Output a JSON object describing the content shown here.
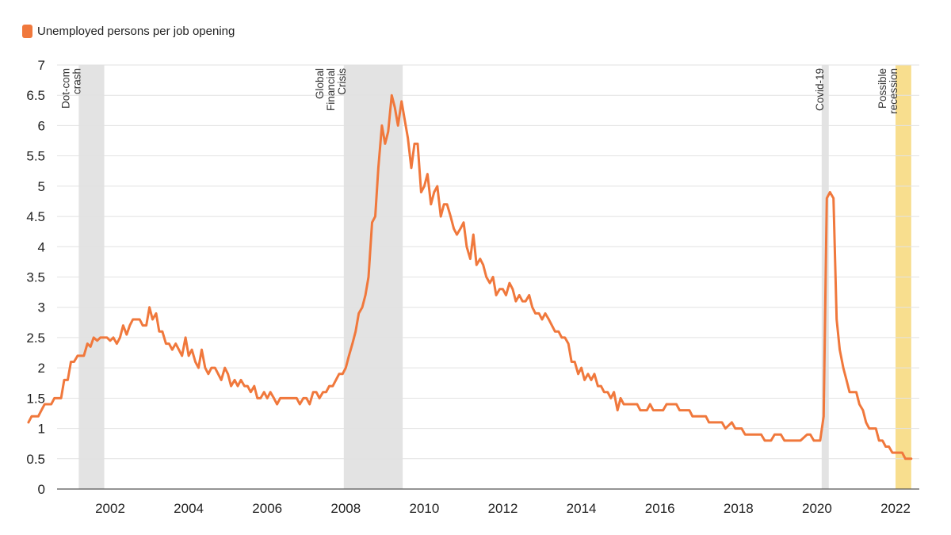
{
  "legend": {
    "label": "Unemployed persons per job opening",
    "color": "#F0783C"
  },
  "colors": {
    "line": "#F0783C",
    "recession_band": "#E3E3E3",
    "forecast_band": "#F8DE8E",
    "grid": "#E2E2E2",
    "axis": "#555555"
  },
  "chart_data": {
    "type": "line",
    "title": "",
    "xlabel": "",
    "ylabel": "",
    "xlim": [
      2000.9,
      2022.4
    ],
    "ylim": [
      0,
      7
    ],
    "grid": true,
    "legend_position": "top-left",
    "x_ticks": [
      2002,
      2004,
      2006,
      2008,
      2010,
      2012,
      2014,
      2016,
      2018,
      2020,
      2022
    ],
    "x_tick_labels": [
      "2002",
      "2004",
      "2006",
      "2008",
      "2010",
      "2012",
      "2014",
      "2016",
      "2018",
      "2020",
      "2022"
    ],
    "y_ticks": [
      0,
      0.5,
      1,
      1.5,
      2,
      2.5,
      3,
      3.5,
      4,
      4.5,
      5,
      5.5,
      6,
      6.5,
      7
    ],
    "y_tick_labels": [
      "0",
      "0.5",
      "1",
      "1.5",
      "2",
      "2.5",
      "3",
      "3.5",
      "4",
      "4.5",
      "5",
      "5.5",
      "6",
      "6.5",
      "7"
    ],
    "bands": [
      {
        "label_lines": [
          "Dot-com",
          "crash"
        ],
        "start": 2001.2,
        "end": 2001.85,
        "kind": "recession"
      },
      {
        "label_lines": [
          "Global",
          "Financial",
          "Crisis"
        ],
        "start": 2007.95,
        "end": 2009.45,
        "kind": "recession"
      },
      {
        "label_lines": [
          "Covid-19"
        ],
        "start": 2020.12,
        "end": 2020.3,
        "kind": "recession"
      },
      {
        "label_lines": [
          "Possible",
          "recession"
        ],
        "start": 2022.0,
        "end": 2022.4,
        "kind": "forecast"
      }
    ],
    "series": [
      {
        "color": "#F0783C",
        "points": [
          [
            2000.92,
            1.1
          ],
          [
            2001.0,
            1.2
          ],
          [
            2001.17,
            1.2
          ],
          [
            2001.25,
            1.3
          ],
          [
            2001.33,
            1.4
          ],
          [
            2001.5,
            1.4
          ],
          [
            2001.58,
            1.5
          ],
          [
            2001.75,
            1.5
          ],
          [
            2001.83,
            1.8
          ],
          [
            2001.92,
            1.8
          ],
          [
            2002.0,
            2.1
          ],
          [
            2002.08,
            2.1
          ],
          [
            2002.17,
            2.2
          ],
          [
            2002.33,
            2.2
          ],
          [
            2002.42,
            2.4
          ],
          [
            2002.5,
            2.35
          ],
          [
            2002.58,
            2.5
          ],
          [
            2002.67,
            2.45
          ],
          [
            2002.75,
            2.5
          ],
          [
            2002.92,
            2.5
          ],
          [
            2003.0,
            2.45
          ],
          [
            2003.08,
            2.5
          ],
          [
            2003.17,
            2.4
          ],
          [
            2003.25,
            2.5
          ],
          [
            2003.33,
            2.7
          ],
          [
            2003.42,
            2.55
          ],
          [
            2003.5,
            2.7
          ],
          [
            2003.58,
            2.8
          ],
          [
            2003.75,
            2.8
          ],
          [
            2003.83,
            2.7
          ],
          [
            2003.92,
            2.7
          ],
          [
            2004.0,
            3.0
          ],
          [
            2004.08,
            2.8
          ],
          [
            2004.17,
            2.9
          ],
          [
            2004.25,
            2.6
          ],
          [
            2004.33,
            2.6
          ],
          [
            2004.42,
            2.4
          ],
          [
            2004.5,
            2.4
          ],
          [
            2004.58,
            2.3
          ],
          [
            2004.67,
            2.4
          ],
          [
            2004.75,
            2.3
          ],
          [
            2004.83,
            2.2
          ],
          [
            2004.92,
            2.5
          ],
          [
            2005.0,
            2.2
          ],
          [
            2005.08,
            2.3
          ],
          [
            2005.17,
            2.1
          ],
          [
            2005.25,
            2.0
          ],
          [
            2005.33,
            2.3
          ],
          [
            2005.42,
            2.0
          ],
          [
            2005.5,
            1.9
          ],
          [
            2005.58,
            2.0
          ],
          [
            2005.67,
            2.0
          ],
          [
            2005.75,
            1.9
          ],
          [
            2005.83,
            1.8
          ],
          [
            2005.92,
            2.0
          ],
          [
            2006.0,
            1.9
          ],
          [
            2006.08,
            1.7
          ],
          [
            2006.17,
            1.8
          ],
          [
            2006.25,
            1.7
          ],
          [
            2006.33,
            1.8
          ],
          [
            2006.42,
            1.7
          ],
          [
            2006.5,
            1.7
          ],
          [
            2006.58,
            1.6
          ],
          [
            2006.67,
            1.7
          ],
          [
            2006.75,
            1.5
          ],
          [
            2006.83,
            1.5
          ],
          [
            2006.92,
            1.6
          ],
          [
            2007.0,
            1.5
          ],
          [
            2007.08,
            1.6
          ],
          [
            2007.17,
            1.5
          ],
          [
            2007.25,
            1.4
          ],
          [
            2007.33,
            1.5
          ],
          [
            2007.75,
            1.5
          ],
          [
            2007.83,
            1.4
          ],
          [
            2007.92,
            1.5
          ],
          [
            2008.0,
            1.5
          ],
          [
            2008.08,
            1.4
          ],
          [
            2008.17,
            1.6
          ],
          [
            2008.25,
            1.6
          ],
          [
            2008.33,
            1.5
          ],
          [
            2008.42,
            1.6
          ],
          [
            2008.5,
            1.6
          ],
          [
            2008.58,
            1.7
          ],
          [
            2008.67,
            1.7
          ],
          [
            2008.75,
            1.8
          ],
          [
            2008.83,
            1.9
          ],
          [
            2008.92,
            1.9
          ],
          [
            2009.0,
            2.0
          ],
          [
            2009.08,
            2.2
          ],
          [
            2009.17,
            2.4
          ],
          [
            2009.25,
            2.6
          ],
          [
            2009.33,
            2.9
          ],
          [
            2009.42,
            3.0
          ],
          [
            2009.5,
            3.2
          ],
          [
            2009.58,
            3.5
          ],
          [
            2009.67,
            4.4
          ],
          [
            2009.75,
            4.5
          ],
          [
            2009.83,
            5.3
          ],
          [
            2009.92,
            6.0
          ],
          [
            2010.0,
            5.7
          ],
          [
            2010.08,
            5.9
          ],
          [
            2010.17,
            6.5
          ],
          [
            2010.25,
            6.3
          ],
          [
            2010.33,
            6.0
          ],
          [
            2010.42,
            6.4
          ],
          [
            2010.5,
            6.1
          ],
          [
            2010.58,
            5.8
          ],
          [
            2010.67,
            5.3
          ],
          [
            2010.75,
            5.7
          ],
          [
            2010.83,
            5.7
          ],
          [
            2010.92,
            4.9
          ],
          [
            2011.0,
            5.0
          ],
          [
            2011.08,
            5.2
          ],
          [
            2011.17,
            4.7
          ],
          [
            2011.25,
            4.9
          ],
          [
            2011.33,
            5.0
          ],
          [
            2011.42,
            4.5
          ],
          [
            2011.5,
            4.7
          ],
          [
            2011.58,
            4.7
          ],
          [
            2011.67,
            4.5
          ],
          [
            2011.75,
            4.3
          ],
          [
            2011.83,
            4.2
          ],
          [
            2011.92,
            4.3
          ],
          [
            2012.0,
            4.4
          ],
          [
            2012.08,
            4.0
          ],
          [
            2012.17,
            3.8
          ],
          [
            2012.25,
            4.2
          ],
          [
            2012.33,
            3.7
          ],
          [
            2012.42,
            3.8
          ],
          [
            2012.5,
            3.7
          ],
          [
            2012.58,
            3.5
          ],
          [
            2012.67,
            3.4
          ],
          [
            2012.75,
            3.5
          ],
          [
            2012.83,
            3.2
          ],
          [
            2012.92,
            3.3
          ],
          [
            2013.0,
            3.3
          ],
          [
            2013.08,
            3.2
          ],
          [
            2013.17,
            3.4
          ],
          [
            2013.25,
            3.3
          ],
          [
            2013.33,
            3.1
          ],
          [
            2013.42,
            3.2
          ],
          [
            2013.5,
            3.1
          ],
          [
            2013.58,
            3.1
          ],
          [
            2013.67,
            3.2
          ],
          [
            2013.75,
            3.0
          ],
          [
            2013.83,
            2.9
          ],
          [
            2013.92,
            2.9
          ],
          [
            2014.0,
            2.8
          ],
          [
            2014.08,
            2.9
          ],
          [
            2014.17,
            2.8
          ],
          [
            2014.25,
            2.7
          ],
          [
            2014.33,
            2.6
          ],
          [
            2014.42,
            2.6
          ],
          [
            2014.5,
            2.5
          ],
          [
            2014.58,
            2.5
          ],
          [
            2014.67,
            2.4
          ],
          [
            2014.75,
            2.1
          ],
          [
            2014.83,
            2.1
          ],
          [
            2014.92,
            1.9
          ],
          [
            2015.0,
            2.0
          ],
          [
            2015.08,
            1.8
          ],
          [
            2015.17,
            1.9
          ],
          [
            2015.25,
            1.8
          ],
          [
            2015.33,
            1.9
          ],
          [
            2015.42,
            1.7
          ],
          [
            2015.5,
            1.7
          ],
          [
            2015.58,
            1.6
          ],
          [
            2015.67,
            1.6
          ],
          [
            2015.75,
            1.5
          ],
          [
            2015.83,
            1.6
          ],
          [
            2015.92,
            1.3
          ],
          [
            2016.0,
            1.5
          ],
          [
            2016.08,
            1.4
          ],
          [
            2016.42,
            1.4
          ],
          [
            2016.5,
            1.3
          ],
          [
            2016.67,
            1.3
          ],
          [
            2016.75,
            1.4
          ],
          [
            2016.83,
            1.3
          ],
          [
            2017.08,
            1.3
          ],
          [
            2017.17,
            1.4
          ],
          [
            2017.42,
            1.4
          ],
          [
            2017.5,
            1.3
          ],
          [
            2017.75,
            1.3
          ],
          [
            2017.83,
            1.2
          ],
          [
            2018.17,
            1.2
          ],
          [
            2018.25,
            1.1
          ],
          [
            2018.58,
            1.1
          ],
          [
            2018.67,
            1.0
          ],
          [
            2018.83,
            1.1
          ],
          [
            2018.92,
            1.0
          ],
          [
            2019.08,
            1.0
          ],
          [
            2019.17,
            0.9
          ],
          [
            2019.58,
            0.9
          ],
          [
            2019.67,
            0.8
          ],
          [
            2019.83,
            0.8
          ],
          [
            2019.92,
            0.9
          ],
          [
            2020.08,
            0.9
          ],
          [
            2020.17,
            0.8
          ],
          [
            2020.58,
            0.8
          ],
          [
            2020.75,
            0.9
          ],
          [
            2020.83,
            0.9
          ],
          [
            2020.92,
            0.8
          ],
          [
            2021.08,
            0.8
          ],
          [
            2021.17,
            1.2
          ],
          [
            2021.25,
            4.8
          ],
          [
            2021.33,
            4.9
          ],
          [
            2021.42,
            4.8
          ],
          [
            2021.5,
            2.8
          ],
          [
            2021.58,
            2.3
          ],
          [
            2021.67,
            2.0
          ],
          [
            2021.75,
            1.8
          ],
          [
            2021.83,
            1.6
          ],
          [
            2022.0,
            1.6
          ],
          [
            2022.08,
            1.4
          ],
          [
            2022.17,
            1.3
          ],
          [
            2022.25,
            1.1
          ],
          [
            2022.33,
            1.0
          ],
          [
            2022.5,
            1.0
          ],
          [
            2022.58,
            0.8
          ],
          [
            2022.67,
            0.8
          ],
          [
            2022.75,
            0.7
          ],
          [
            2022.83,
            0.7
          ],
          [
            2022.92,
            0.6
          ],
          [
            2023.17,
            0.6
          ],
          [
            2023.25,
            0.5
          ],
          [
            2023.4,
            0.5
          ]
        ]
      }
    ]
  }
}
